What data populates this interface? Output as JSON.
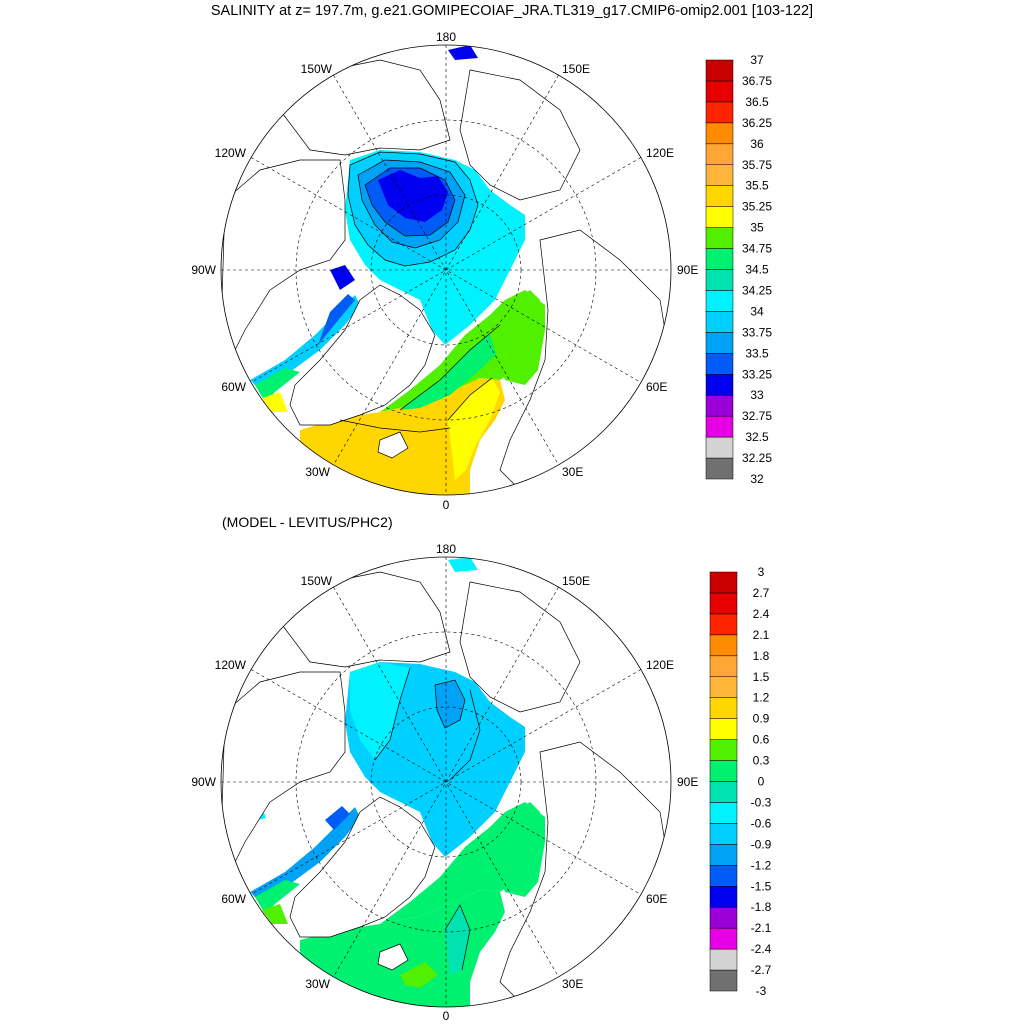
{
  "title": "SALINITY at z= 197.7m, g.e21.GOMIPECOIAF_JRA.TL319_g17.CMIP6-omip2.001 [103-122]",
  "subtitle": "(MODEL - LEVITUS/PHC2)",
  "lon_labels": {
    "top": "180",
    "bottom": "0",
    "left": "90W",
    "right": "90E",
    "upper_left": "150W",
    "upper_right": "150E",
    "mid_upper_left": "120W",
    "mid_upper_right": "120E",
    "mid_lower_left": "60W",
    "mid_lower_right": "60E",
    "lower_left": "30W",
    "lower_right": "30E"
  },
  "colors": {
    "land": "#ffffff",
    "palette": [
      "#707070",
      "#d3d3d3",
      "#e600e6",
      "#9b00d8",
      "#0000f0",
      "#005cf5",
      "#00a2f5",
      "#00d0ff",
      "#00f2ff",
      "#00e3b0",
      "#00f070",
      "#50f000",
      "#ffff00",
      "#ffd600",
      "#ffb43a",
      "#ffa634",
      "#ff8c00",
      "#ff2400",
      "#e60000",
      "#c80000"
    ]
  },
  "colorbar_top": {
    "labels": [
      "37",
      "36.75",
      "36.5",
      "36.25",
      "36",
      "35.75",
      "35.5",
      "35.25",
      "35",
      "34.75",
      "34.5",
      "34.25",
      "34",
      "33.75",
      "33.5",
      "33.25",
      "33",
      "32.75",
      "32.5",
      "32.25",
      "32"
    ]
  },
  "colorbar_bottom": {
    "labels": [
      "3",
      "2.7",
      "2.4",
      "2.1",
      "1.8",
      "1.5",
      "1.2",
      "0.9",
      "0.6",
      "0.3",
      "0",
      "-0.3",
      "-0.6",
      "-0.9",
      "-1.2",
      "-1.5",
      "-1.8",
      "-2.1",
      "-2.4",
      "-2.7",
      "-3"
    ]
  }
}
